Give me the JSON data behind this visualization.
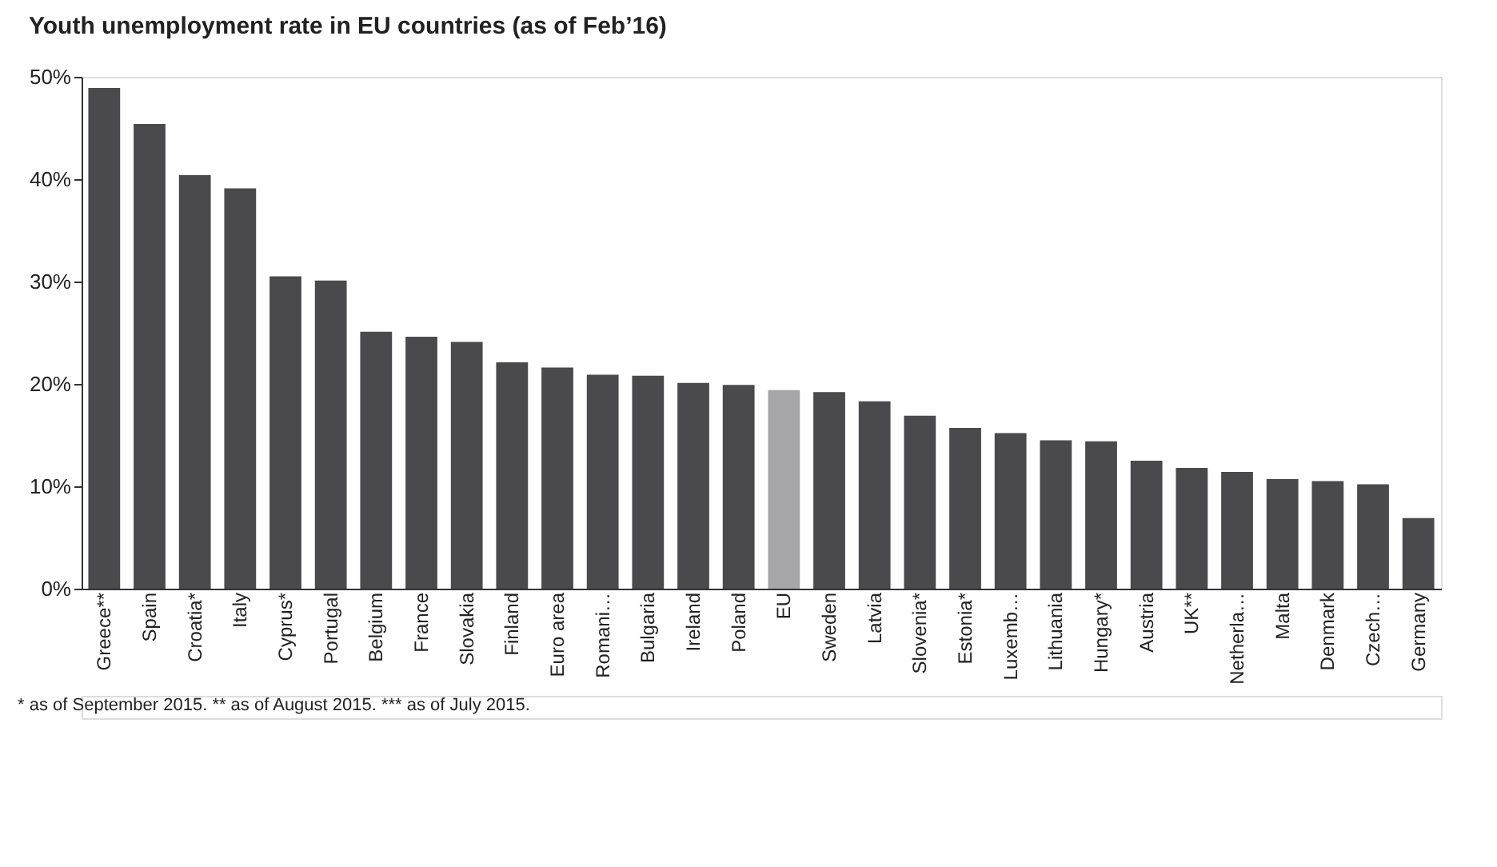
{
  "chart_data": {
    "type": "bar",
    "title": "Youth unemployment rate in EU countries (as of Feb’16)",
    "categories": [
      "Greece**",
      "Spain",
      "Croatia*",
      "Italy",
      "Cyprus*",
      "Portugal",
      "Belgium",
      "France",
      "Slovakia",
      "Finland",
      "Euro area",
      "Romani…",
      "Bulgaria",
      "Ireland",
      "Poland",
      "EU",
      "Sweden",
      "Latvia",
      "Slovenia*",
      "Estonia*",
      "Luxemb…",
      "Lithuania",
      "Hungary*",
      "Austria",
      "UK**",
      "Netherla…",
      "Malta",
      "Denmark",
      "Czech…",
      "Germany"
    ],
    "values": [
      48.9,
      45.4,
      40.4,
      39.1,
      30.5,
      30.1,
      25.1,
      24.6,
      24.1,
      22.1,
      21.6,
      20.9,
      20.8,
      20.1,
      19.9,
      19.4,
      19.2,
      18.3,
      16.9,
      15.7,
      15.2,
      14.5,
      14.4,
      12.5,
      11.8,
      11.4,
      10.7,
      10.5,
      10.2,
      6.9
    ],
    "colors": [
      "#4a4a4c",
      "#4a4a4c",
      "#4a4a4c",
      "#4a4a4c",
      "#4a4a4c",
      "#4a4a4c",
      "#4a4a4c",
      "#4a4a4c",
      "#4a4a4c",
      "#4a4a4c",
      "#4a4a4c",
      "#4a4a4c",
      "#4a4a4c",
      "#4a4a4c",
      "#4a4a4c",
      "#a7a7a9",
      "#4a4a4c",
      "#4a4a4c",
      "#4a4a4c",
      "#4a4a4c",
      "#4a4a4c",
      "#4a4a4c",
      "#4a4a4c",
      "#4a4a4c",
      "#4a4a4c",
      "#4a4a4c",
      "#4a4a4c",
      "#4a4a4c",
      "#4a4a4c",
      "#4a4a4c"
    ],
    "ylim": [
      0,
      50
    ],
    "yticks": [
      {
        "value": 0,
        "label": "0%"
      },
      {
        "value": 10,
        "label": "10%"
      },
      {
        "value": 20,
        "label": "20%"
      },
      {
        "value": 30,
        "label": "30%"
      },
      {
        "value": 40,
        "label": "40%"
      },
      {
        "value": 50,
        "label": "50%"
      }
    ],
    "grid": false,
    "annotations": [
      "* as of September 2015. ** as of August 2015. *** as of July 2015."
    ]
  }
}
